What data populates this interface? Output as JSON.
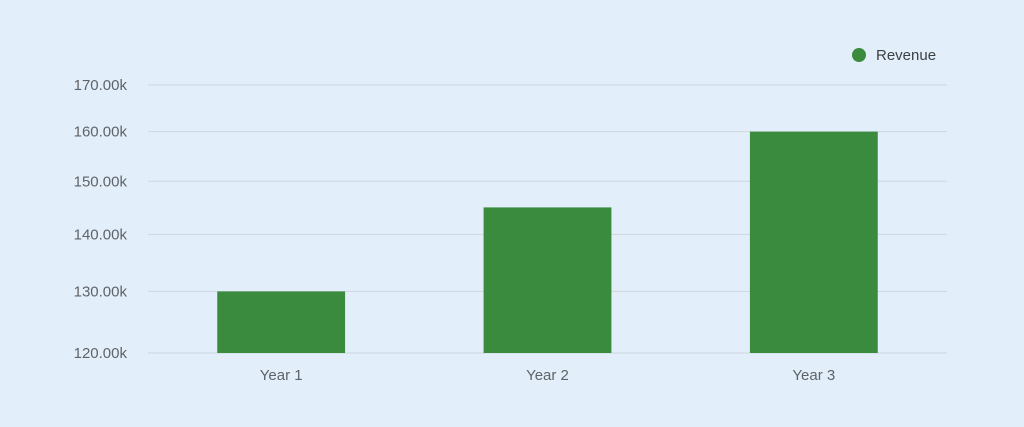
{
  "chart_data": {
    "type": "bar",
    "categories": [
      "Year 1",
      "Year 2",
      "Year 3"
    ],
    "series": [
      {
        "name": "Revenue",
        "values": [
          130000,
          145000,
          160000
        ],
        "color": "#3a8b3d"
      }
    ],
    "yticks": [
      120000,
      130000,
      140000,
      150000,
      160000,
      170000
    ],
    "ytick_labels": [
      "120.00k",
      "130.00k",
      "140.00k",
      "150.00k",
      "160.00k",
      "170.00k"
    ],
    "ylim": [
      120000,
      170000
    ],
    "yscale": "log",
    "grid": true,
    "legend": "top-right",
    "title": "",
    "xlabel": "",
    "ylabel": ""
  }
}
